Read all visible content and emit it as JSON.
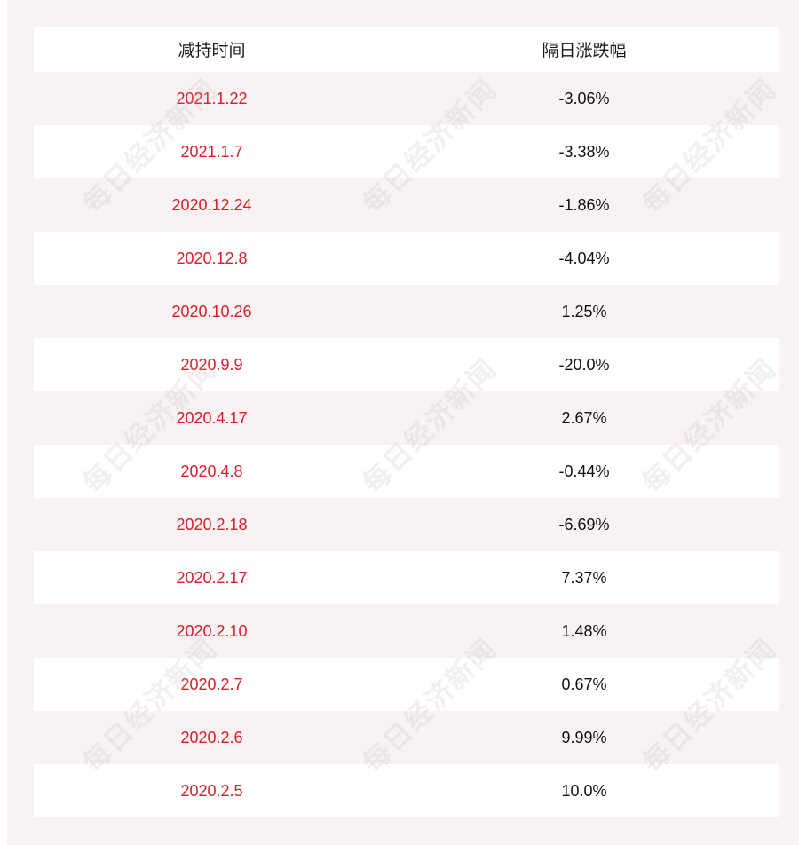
{
  "table": {
    "headers": [
      "减持时间",
      "隔日涨跌幅"
    ],
    "rows": [
      {
        "date": "2021.1.22",
        "change": "-3.06%"
      },
      {
        "date": "2021.1.7",
        "change": "-3.38%"
      },
      {
        "date": "2020.12.24",
        "change": "-1.86%"
      },
      {
        "date": "2020.12.8",
        "change": "-4.04%"
      },
      {
        "date": "2020.10.26",
        "change": "1.25%"
      },
      {
        "date": "2020.9.9",
        "change": "-20.0%"
      },
      {
        "date": "2020.4.17",
        "change": "2.67%"
      },
      {
        "date": "2020.4.8",
        "change": "-0.44%"
      },
      {
        "date": "2020.2.18",
        "change": "-6.69%"
      },
      {
        "date": "2020.2.17",
        "change": "7.37%"
      },
      {
        "date": "2020.2.10",
        "change": "1.48%"
      },
      {
        "date": "2020.2.7",
        "change": "0.67%"
      },
      {
        "date": "2020.2.6",
        "change": "9.99%"
      },
      {
        "date": "2020.2.5",
        "change": "10.0%"
      }
    ]
  },
  "watermark": {
    "text": "每日经济新闻"
  },
  "colors": {
    "date_text": "#d7202b",
    "value_text": "#111111",
    "panel_bg": "#f8f2f3"
  }
}
